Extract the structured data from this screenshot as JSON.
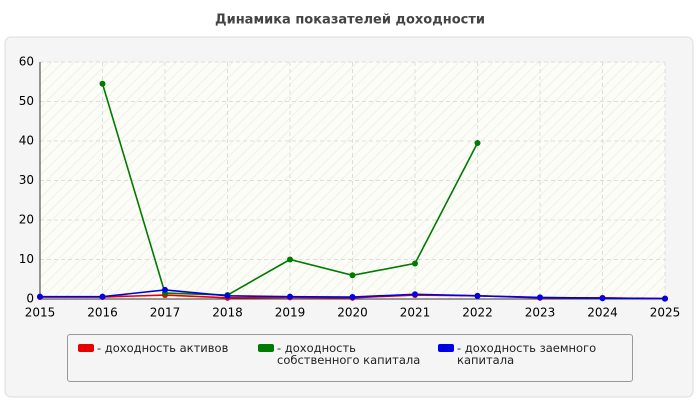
{
  "chart_data": {
    "type": "line",
    "title": "Динамика показателей доходности",
    "x": [
      2015,
      2016,
      2017,
      2018,
      2019,
      2020,
      2021,
      2022,
      2023,
      2024,
      2025
    ],
    "series": [
      {
        "name": "- доходность активов",
        "color": "#e60000",
        "values": [
          0.5,
          0.5,
          1,
          0.3,
          0.4,
          0.3,
          1,
          0.8,
          0.3,
          0.3,
          0.1
        ]
      },
      {
        "name": "- доходность собственного капитала",
        "color": "#007a00",
        "values": [
          null,
          54.5,
          1.5,
          1,
          10,
          6,
          9,
          39.5,
          null,
          null,
          null
        ]
      },
      {
        "name": "- доходность заемного капитала",
        "color": "#0000e6",
        "values": [
          0.6,
          0.6,
          2.3,
          0.8,
          0.6,
          0.5,
          1.2,
          0.8,
          0.4,
          0.2,
          0.1
        ]
      }
    ],
    "xlim": [
      2015,
      2025
    ],
    "xticks": [
      2015,
      2016,
      2017,
      2018,
      2019,
      2020,
      2021,
      2022,
      2023,
      2024,
      2025
    ],
    "ylim": [
      0,
      60
    ],
    "yticks": [
      0,
      10,
      20,
      30,
      40,
      50,
      60
    ],
    "grid": true
  }
}
